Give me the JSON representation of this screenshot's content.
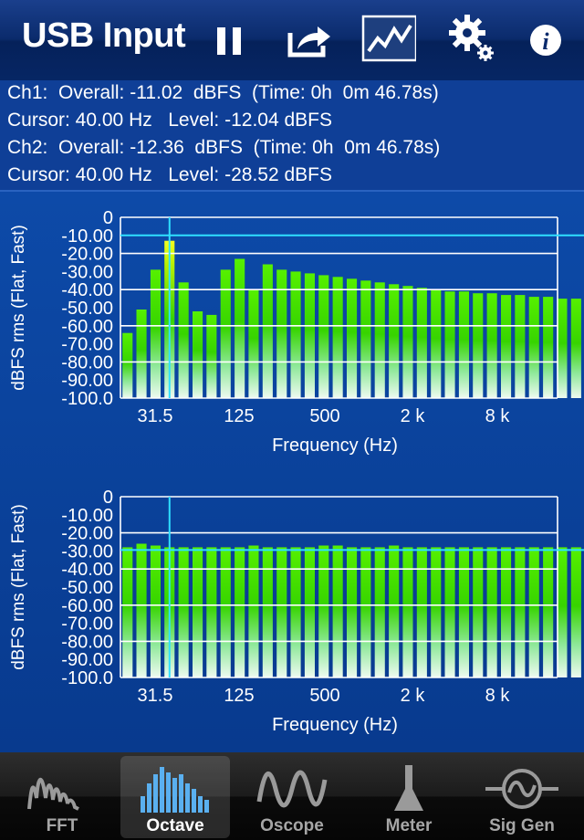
{
  "toolbar": {
    "title": "USB Input",
    "buttons": [
      {
        "name": "pause",
        "icon": "pause-icon"
      },
      {
        "name": "share",
        "icon": "share-icon"
      },
      {
        "name": "graph",
        "icon": "graph-icon"
      },
      {
        "name": "settings",
        "icon": "gear-icon"
      },
      {
        "name": "info",
        "icon": "info-icon"
      }
    ]
  },
  "info": {
    "line1": "Ch1:  Overall: -11.02  dBFS  (Time: 0h  0m 46.78s)",
    "line2": "Cursor: 40.00 Hz   Level: -12.04 dBFS",
    "line3": "Ch2:  Overall: -12.36  dBFS  (Time: 0h  0m 46.78s)",
    "line4": "Cursor: 40.00 Hz   Level: -28.52 dBFS"
  },
  "chart_data": [
    {
      "type": "bar",
      "title": "",
      "ylabel": "dBFS rms (Flat, Fast)",
      "xlabel": "Frequency (Hz)",
      "ylim": [
        -100,
        0
      ],
      "yticks": [
        "0",
        "-10.00",
        "-20.00",
        "-30.00",
        "-40.00",
        "-50.00",
        "-60.00",
        "-70.00",
        "-80.00",
        "-90.00",
        "-100.0"
      ],
      "xticks": [
        "31.5",
        "125",
        "500",
        "2 k",
        "8 k"
      ],
      "cursor_band": 3,
      "cursor_level": -10.0,
      "values": [
        -64,
        -51,
        -29,
        -13,
        -36,
        -52,
        -54,
        -29,
        -23,
        -40,
        -26,
        -29,
        -30,
        -31,
        -32,
        -33,
        -34,
        -35,
        -36,
        -37,
        -38,
        -39,
        -40,
        -41,
        -41,
        -42,
        -42,
        -43,
        -43,
        -44,
        -44,
        -45,
        -45
      ]
    },
    {
      "type": "bar",
      "title": "",
      "ylabel": "dBFS rms (Flat, Fast)",
      "xlabel": "Frequency (Hz)",
      "ylim": [
        -100,
        0
      ],
      "yticks": [
        "0",
        "-10.00",
        "-20.00",
        "-30.00",
        "-40.00",
        "-50.00",
        "-60.00",
        "-70.00",
        "-80.00",
        "-90.00",
        "-100.0"
      ],
      "xticks": [
        "31.5",
        "125",
        "500",
        "2 k",
        "8 k"
      ],
      "cursor_band": 3,
      "cursor_level": -29.5,
      "values": [
        -28,
        -26,
        -27,
        -28,
        -28,
        -28,
        -28,
        -28,
        -28,
        -27,
        -28,
        -28,
        -28,
        -28,
        -27,
        -27,
        -28,
        -28,
        -28,
        -27,
        -28,
        -28,
        -28,
        -28,
        -28,
        -28,
        -28,
        -28,
        -28,
        -28,
        -28,
        -28,
        -28
      ]
    }
  ],
  "tabs": [
    {
      "label": "FFT",
      "icon": "fft-icon",
      "selected": false
    },
    {
      "label": "Octave",
      "icon": "octave-icon",
      "selected": true
    },
    {
      "label": "Oscope",
      "icon": "oscope-icon",
      "selected": false
    },
    {
      "label": "Meter",
      "icon": "meter-icon",
      "selected": false
    },
    {
      "label": "Sig Gen",
      "icon": "sig-gen-icon",
      "selected": false
    }
  ]
}
